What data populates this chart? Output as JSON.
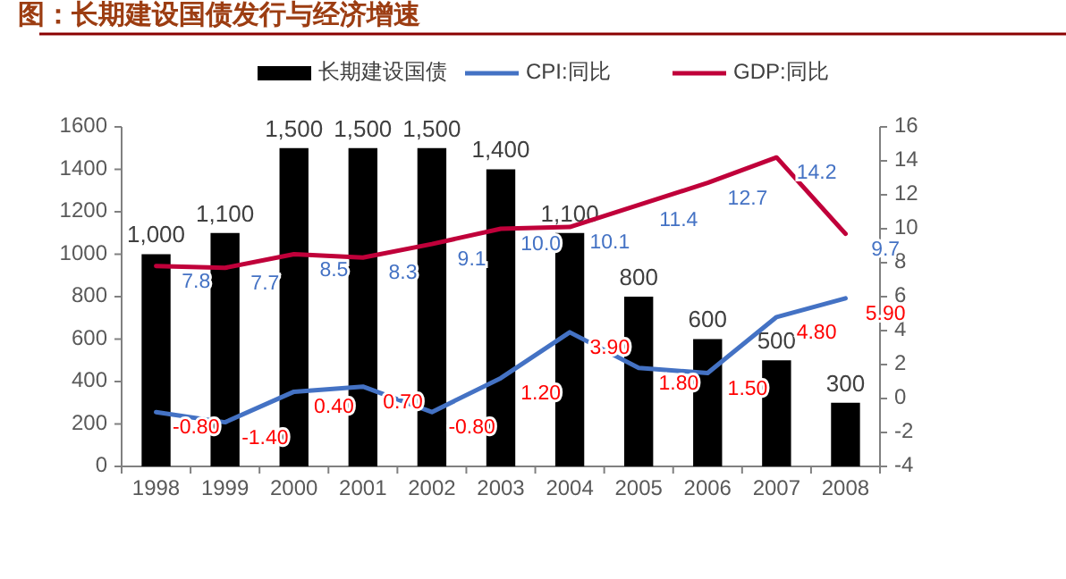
{
  "chart_data": {
    "type": "bar",
    "title": "图：长期建设国债发行与经济增速",
    "categories": [
      "1998",
      "1999",
      "2000",
      "2001",
      "2002",
      "2003",
      "2004",
      "2005",
      "2006",
      "2007",
      "2008"
    ],
    "series": [
      {
        "name": "长期建设国债",
        "color": "#000000",
        "values": [
          1000,
          1100,
          1500,
          1500,
          1500,
          1400,
          1100,
          800,
          600,
          500,
          300
        ],
        "value_labels": [
          "1,000",
          "1,100",
          "1,500",
          "1,500",
          "1,500",
          "1,400",
          "1,100",
          "800",
          "600",
          "500",
          "300"
        ]
      },
      {
        "name": "CPI:同比",
        "type": "line",
        "axis": "y2",
        "color": "#4472c4",
        "values": [
          -0.8,
          -1.4,
          0.4,
          0.7,
          -0.8,
          1.2,
          3.9,
          1.8,
          1.5,
          4.8,
          5.9
        ],
        "value_labels": [
          "-0.80",
          "-1.40",
          "0.40",
          "0.70",
          "-0.80",
          "1.20",
          "3.90",
          "1.80",
          "1.50",
          "4.80",
          "5.90"
        ]
      },
      {
        "name": "GDP:同比",
        "type": "line",
        "axis": "y2",
        "color": "#c0003a",
        "values": [
          7.8,
          7.7,
          8.5,
          8.3,
          9.1,
          10.0,
          10.1,
          11.4,
          12.7,
          14.2,
          9.7
        ],
        "value_labels": [
          "7.8",
          "7.7",
          "8.5",
          "8.3",
          "9.1",
          "10.0",
          "10.1",
          "11.4",
          "12.7",
          "14.2",
          "9.7"
        ]
      }
    ],
    "ylim": [
      0,
      1600
    ],
    "yticks": [
      0,
      200,
      400,
      600,
      800,
      1000,
      1200,
      1400,
      1600
    ],
    "y2lim": [
      -4,
      16
    ],
    "y2ticks": [
      -4,
      -2,
      0,
      2,
      4,
      6,
      8,
      10,
      12,
      14,
      16
    ],
    "legend": "top",
    "grid": false,
    "marker": "none",
    "line_style": "solid"
  }
}
